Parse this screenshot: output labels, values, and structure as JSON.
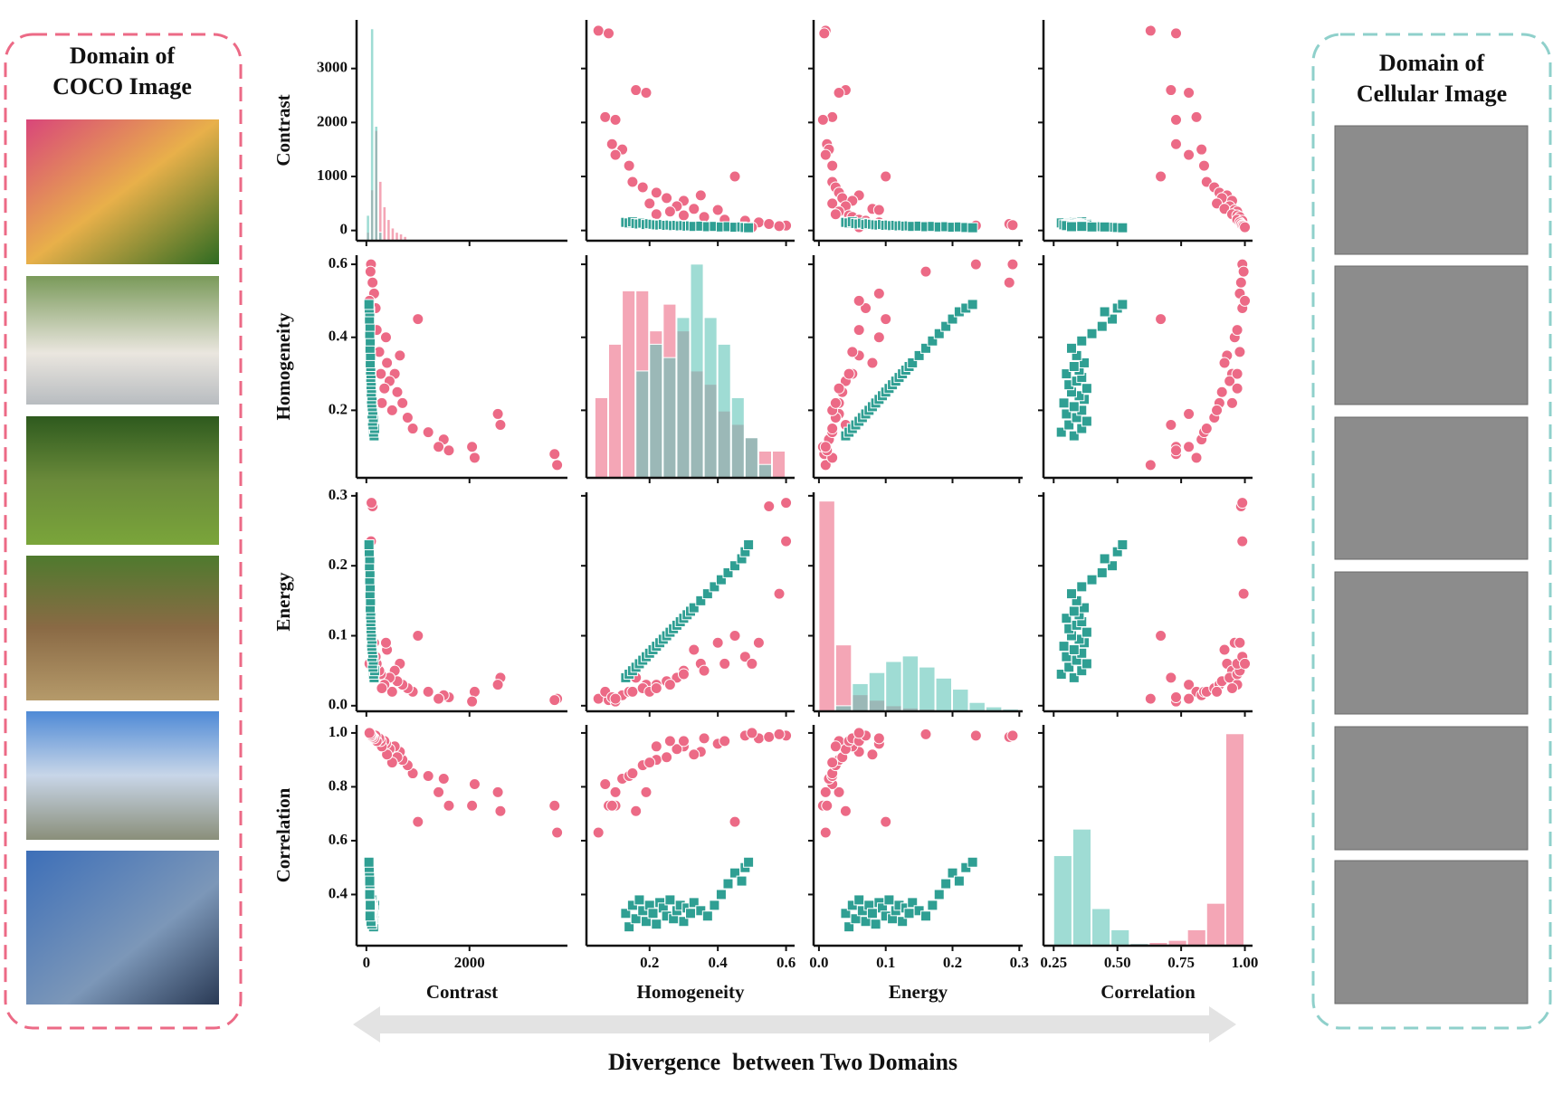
{
  "left_panel": {
    "title": "Domain of\nCOCO Image"
  },
  "right_panel": {
    "title": "Domain of\nCellular Image"
  },
  "footer": {
    "caption": "Divergence  between Two Domains"
  },
  "chart_data": {
    "type": "pairplot",
    "variables": [
      "Contrast",
      "Homogeneity",
      "Energy",
      "Correlation"
    ],
    "axes": [
      {
        "lim": [
          -190,
          3900
        ],
        "xticks": [
          0,
          2000
        ],
        "yticks": [
          0,
          1000,
          2000,
          3000
        ]
      },
      {
        "lim": [
          0.015,
          0.625
        ],
        "xticks": [
          0.2,
          0.4,
          0.6
        ],
        "yticks": [
          0.2,
          0.4,
          0.6
        ]
      },
      {
        "lim": [
          -0.008,
          0.305
        ],
        "xticks": [
          {
            "value": 0,
            "label": "0.0"
          },
          0.1,
          0.2,
          0.3
        ],
        "yticks": [
          {
            "value": 0,
            "label": "0.0"
          },
          0.1,
          0.2,
          0.3
        ]
      },
      {
        "lim": [
          0.21,
          1.03
        ],
        "xticks": [
          0.25,
          {
            "value": 0.5,
            "label": "0.50"
          },
          0.75,
          {
            "value": 1,
            "label": "1.00"
          }
        ],
        "yticks": [
          0.4,
          0.6,
          0.8,
          {
            "value": 1,
            "label": "1.0"
          }
        ]
      }
    ],
    "series": [
      {
        "color": "#ec6a86",
        "marker": "circle",
        "values": [
          [
            3700,
            3650,
            2600,
            2550,
            2100,
            2050,
            1600,
            1500,
            1400,
            1200,
            1000,
            900,
            800,
            700,
            650,
            600,
            550,
            500,
            450,
            400,
            380,
            350,
            300,
            280,
            250,
            200,
            180,
            150,
            120,
            100,
            90,
            80,
            60
          ],
          [
            0.05,
            0.08,
            0.16,
            0.19,
            0.07,
            0.1,
            0.09,
            0.12,
            0.1,
            0.14,
            0.45,
            0.15,
            0.18,
            0.22,
            0.35,
            0.25,
            0.3,
            0.2,
            0.28,
            0.33,
            0.4,
            0.26,
            0.22,
            0.3,
            0.36,
            0.42,
            0.48,
            0.52,
            0.55,
            0.6,
            0.6,
            0.58,
            0.5
          ],
          [
            0.01,
            0.008,
            0.04,
            0.03,
            0.02,
            0.006,
            0.012,
            0.015,
            0.01,
            0.02,
            0.1,
            0.02,
            0.025,
            0.03,
            0.06,
            0.035,
            0.05,
            0.02,
            0.04,
            0.08,
            0.09,
            0.03,
            0.025,
            0.045,
            0.05,
            0.06,
            0.07,
            0.09,
            0.285,
            0.29,
            0.235,
            0.16,
            0.06
          ],
          [
            0.63,
            0.73,
            0.71,
            0.78,
            0.81,
            0.73,
            0.73,
            0.83,
            0.78,
            0.84,
            0.67,
            0.85,
            0.88,
            0.9,
            0.93,
            0.91,
            0.95,
            0.89,
            0.94,
            0.92,
            0.96,
            0.97,
            0.95,
            0.97,
            0.98,
            0.97,
            0.99,
            0.98,
            0.985,
            0.99,
            0.99,
            0.995,
            1.0
          ]
        ]
      },
      {
        "color": "#2f9f93",
        "marker": "square",
        "values": [
          [
            150,
            140,
            160,
            130,
            120,
            135,
            110,
            125,
            115,
            105,
            100,
            110,
            95,
            100,
            90,
            95,
            85,
            90,
            80,
            85,
            75,
            80,
            70,
            75,
            65,
            70,
            60,
            65,
            55,
            50
          ],
          [
            0.13,
            0.14,
            0.15,
            0.16,
            0.17,
            0.18,
            0.19,
            0.2,
            0.21,
            0.22,
            0.23,
            0.24,
            0.25,
            0.26,
            0.27,
            0.28,
            0.29,
            0.3,
            0.31,
            0.32,
            0.33,
            0.35,
            0.37,
            0.39,
            0.41,
            0.43,
            0.45,
            0.47,
            0.48,
            0.49
          ],
          [
            0.04,
            0.045,
            0.05,
            0.055,
            0.06,
            0.065,
            0.07,
            0.075,
            0.08,
            0.085,
            0.09,
            0.095,
            0.1,
            0.105,
            0.11,
            0.115,
            0.12,
            0.125,
            0.13,
            0.135,
            0.14,
            0.15,
            0.16,
            0.17,
            0.18,
            0.19,
            0.2,
            0.21,
            0.22,
            0.23
          ],
          [
            0.33,
            0.28,
            0.36,
            0.31,
            0.38,
            0.34,
            0.3,
            0.36,
            0.33,
            0.29,
            0.37,
            0.35,
            0.32,
            0.38,
            0.31,
            0.34,
            0.36,
            0.3,
            0.35,
            0.33,
            0.37,
            0.34,
            0.32,
            0.36,
            0.4,
            0.44,
            0.48,
            0.45,
            0.5,
            0.52
          ]
        ]
      }
    ],
    "diagonal": [
      {
        "bins": [
          0,
          80,
          160,
          240,
          320,
          400,
          480,
          560,
          640,
          720,
          800
        ],
        "series": [
          {
            "color": "#ec6a86",
            "values": [
              10,
              60,
              130,
              70,
              40,
              25,
              15,
              10,
              8,
              5
            ]
          },
          {
            "color": "#5fc4b8",
            "values": [
              30,
              250,
              135,
              10,
              0,
              0,
              0,
              0,
              0,
              0
            ]
          }
        ]
      },
      {
        "bins": [
          0.04,
          0.08,
          0.12,
          0.16,
          0.2,
          0.24,
          0.28,
          0.32,
          0.36,
          0.4,
          0.44,
          0.48,
          0.52,
          0.56,
          0.6
        ],
        "series": [
          {
            "color": "#ec6a86",
            "values": [
              6,
              10,
              14,
              14,
              11,
              13,
              11,
              8,
              7,
              5,
              4,
              3,
              2,
              2
            ]
          },
          {
            "color": "#5fc4b8",
            "values": [
              0,
              0,
              0,
              8,
              10,
              9,
              12,
              16,
              12,
              10,
              6,
              3,
              1,
              0
            ]
          }
        ]
      },
      {
        "bins": [
          0,
          0.025,
          0.05,
          0.075,
          0.1,
          0.125,
          0.15,
          0.175,
          0.2,
          0.225,
          0.25,
          0.275,
          0.3
        ],
        "series": [
          {
            "color": "#ec6a86",
            "values": [
              190,
              60,
              15,
              10,
              5,
              3,
              2,
              1,
              1,
              1,
              0,
              1
            ]
          },
          {
            "color": "#5fc4b8",
            "values": [
              0,
              5,
              25,
              35,
              45,
              50,
              40,
              30,
              20,
              8,
              4,
              2
            ]
          }
        ]
      },
      {
        "bins": [
          0.25,
          0.325,
          0.4,
          0.475,
          0.55,
          0.625,
          0.7,
          0.775,
          0.85,
          0.925,
          1.0
        ],
        "series": [
          {
            "color": "#ec6a86",
            "values": [
              0,
              0,
              0,
              0,
              2,
              3,
              5,
              15,
              40,
              200
            ]
          },
          {
            "color": "#5fc4b8",
            "values": [
              85,
              110,
              35,
              15,
              2,
              0,
              0,
              0,
              0,
              0
            ]
          }
        ]
      }
    ]
  }
}
